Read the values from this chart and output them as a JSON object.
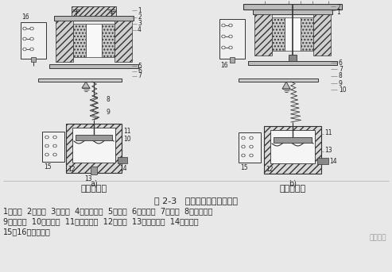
{
  "bg_color": "#e8e8e8",
  "title": "图 2-3   空气阻尼式时间继电器",
  "label_a": "通电延时型",
  "label_b": "断电延时型",
  "sub_a": "a)",
  "sub_b": "b)",
  "caption_line1": "1一线圈  2一铁心  3一衔铁  4一反力弹簧  5一推板  6一活塞杆  7一杠杆  8一塔形弹簧",
  "caption_line2": "9一弱弹簧  10一橡皮膜  11一空气室壁  12一活塞  13一调节螺杆  14一进气孔",
  "caption_line3": "15、16一微动开关",
  "watermark": "电工之家",
  "text_color": "#222222",
  "font_size_caption": 7.0,
  "font_size_title": 8.0,
  "font_size_label": 8.0,
  "font_size_small": 5.5
}
